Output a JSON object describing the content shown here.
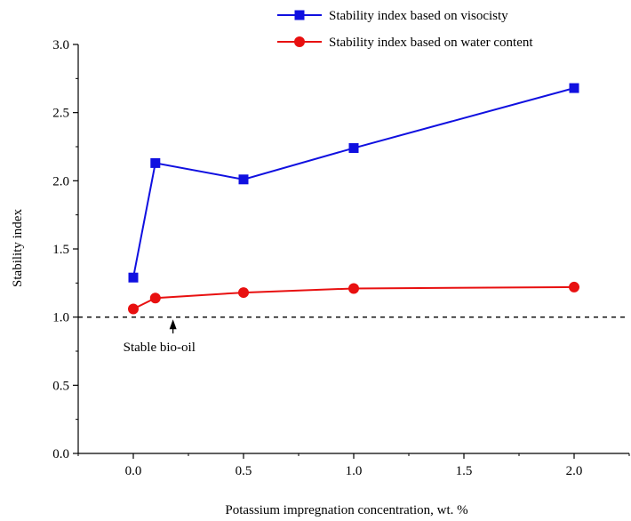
{
  "chart_data": {
    "type": "line",
    "xlabel": "Potassium impregnation concentration, wt. %",
    "ylabel": "Stability index",
    "xlim": [
      -0.25,
      2.25
    ],
    "ylim": [
      0.0,
      3.0
    ],
    "x_ticks": [
      0.0,
      0.5,
      1.0,
      1.5,
      2.0
    ],
    "x_tick_labels": [
      "0.0",
      "0.5",
      "1.0",
      "1.5",
      "2.0"
    ],
    "y_ticks": [
      0.0,
      0.5,
      1.0,
      1.5,
      2.0,
      2.5,
      3.0
    ],
    "y_tick_labels": [
      "0.0",
      "0.5",
      "1.0",
      "1.5",
      "2.0",
      "2.5",
      "3.0"
    ],
    "grid": false,
    "legend_position": "top-right",
    "series": [
      {
        "name": "Stability index based on visocisty",
        "color": "#1010e0",
        "marker": "square",
        "x": [
          0.0,
          0.1,
          0.5,
          1.0,
          2.0
        ],
        "y": [
          1.29,
          2.13,
          2.01,
          2.24,
          2.68
        ]
      },
      {
        "name": "Stability index based on water content",
        "color": "#e81010",
        "marker": "circle",
        "x": [
          0.0,
          0.1,
          0.5,
          1.0,
          2.0
        ],
        "y": [
          1.06,
          1.14,
          1.18,
          1.21,
          1.22
        ]
      }
    ],
    "reference_line": {
      "y": 1.0,
      "style": "dashed",
      "color": "#000000"
    },
    "annotation": {
      "text": "Stable bio-oil",
      "arrow_x": 0.18,
      "arrow_from_y": 0.88,
      "arrow_to_y": 0.99
    }
  }
}
